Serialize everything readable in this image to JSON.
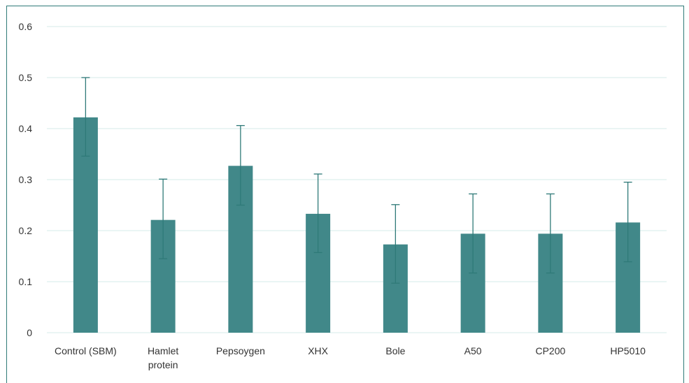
{
  "chart_data": {
    "type": "bar",
    "categories": [
      "Control (SBM)",
      "Hamlet protein",
      "Pepsoygen",
      "XHX",
      "Bole",
      "A50",
      "CP200",
      "HP5010"
    ],
    "category_lines": [
      [
        "Control (SBM)"
      ],
      [
        "Hamlet",
        "protein"
      ],
      [
        "Pepsoygen"
      ],
      [
        "XHX"
      ],
      [
        "Bole"
      ],
      [
        "A50"
      ],
      [
        "CP200"
      ],
      [
        "HP5010"
      ]
    ],
    "values": [
      0.422,
      0.221,
      0.327,
      0.233,
      0.173,
      0.194,
      0.194,
      0.216
    ],
    "error_low": [
      0.346,
      0.145,
      0.25,
      0.157,
      0.097,
      0.117,
      0.117,
      0.139
    ],
    "error_high": [
      0.5,
      0.301,
      0.406,
      0.311,
      0.251,
      0.272,
      0.272,
      0.295
    ],
    "yticks": [
      "0",
      "0.1",
      "0.2",
      "0.3",
      "0.4",
      "0.5",
      "0.6"
    ],
    "ylim": [
      0,
      0.6
    ],
    "title": "",
    "xlabel": "",
    "ylabel": "",
    "grid": true,
    "bar_color": "#418889",
    "error_color": "#2f7a78",
    "grid_color": "#d6ebe9",
    "frame_color": "#2f7a78"
  }
}
